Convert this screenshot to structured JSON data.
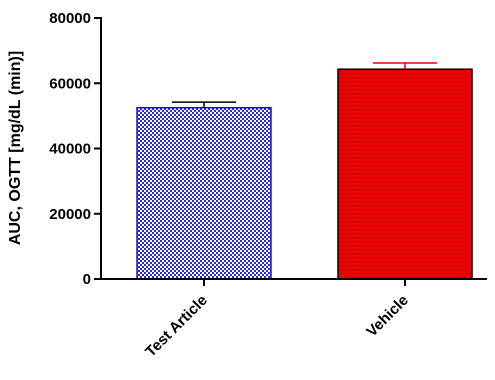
{
  "chart_data": {
    "type": "bar",
    "title": "",
    "xlabel": "",
    "ylabel": "AUC, OGTT [mg/dL (min)]",
    "categories": [
      "Test Article",
      "Vehicle"
    ],
    "values": [
      52500,
      64300
    ],
    "error_plus": [
      1700,
      1900
    ],
    "ylim": [
      0,
      80000
    ],
    "yticks": [
      0,
      20000,
      40000,
      60000,
      80000
    ],
    "ytick_labels": [
      "0",
      "20000",
      "40000",
      "60000",
      "80000"
    ],
    "grid": false,
    "legend": "none",
    "bar_styles": [
      {
        "pattern": "checker",
        "edge_color": "#1515c8",
        "fill_color": "#ffffff",
        "dot_color": "#2a2ad8"
      },
      {
        "pattern": "dots",
        "edge_color": "#000000",
        "fill_color": "#ee0000",
        "dot_color": "#000000"
      }
    ],
    "error_bar_colors": [
      "#000000",
      "#ee0000"
    ]
  }
}
